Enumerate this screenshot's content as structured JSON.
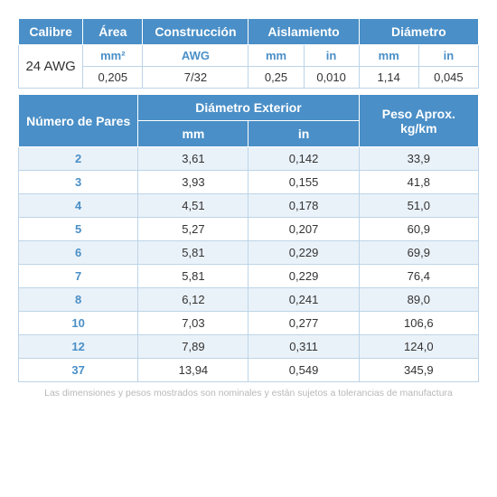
{
  "table1": {
    "headers": {
      "calibre": "Calibre",
      "area": "Área",
      "construccion": "Construcción",
      "aislamiento": "Aislamiento",
      "diametro": "Diámetro"
    },
    "subheaders": {
      "area_unit": "mm²",
      "construccion_unit": "AWG",
      "aisl_mm": "mm",
      "aisl_in": "in",
      "diam_mm": "mm",
      "diam_in": "in"
    },
    "row": {
      "calibre": "24 AWG",
      "area": "0,205",
      "construccion": "7/32",
      "aisl_mm": "0,25",
      "aisl_in": "0,010",
      "diam_mm": "1,14",
      "diam_in": "0,045"
    }
  },
  "table2": {
    "headers": {
      "pares": "Número de Pares",
      "diam_ext": "Diámetro Exterior",
      "peso": "Peso Aprox. kg/km",
      "mm": "mm",
      "in": "in"
    },
    "rows": [
      {
        "pares": "2",
        "mm": "3,61",
        "in": "0,142",
        "peso": "33,9"
      },
      {
        "pares": "3",
        "mm": "3,93",
        "in": "0,155",
        "peso": "41,8"
      },
      {
        "pares": "4",
        "mm": "4,51",
        "in": "0,178",
        "peso": "51,0"
      },
      {
        "pares": "5",
        "mm": "5,27",
        "in": "0,207",
        "peso": "60,9"
      },
      {
        "pares": "6",
        "mm": "5,81",
        "in": "0,229",
        "peso": "69,9"
      },
      {
        "pares": "7",
        "mm": "5,81",
        "in": "0,229",
        "peso": "76,4"
      },
      {
        "pares": "8",
        "mm": "6,12",
        "in": "0,241",
        "peso": "89,0"
      },
      {
        "pares": "10",
        "mm": "7,03",
        "in": "0,277",
        "peso": "106,6"
      },
      {
        "pares": "12",
        "mm": "7,89",
        "in": "0,311",
        "peso": "124,0"
      },
      {
        "pares": "37",
        "mm": "13,94",
        "in": "0,549",
        "peso": "345,9"
      }
    ]
  },
  "footnote": "Las dimensiones y pesos mostrados son nominales y están sujetos a tolerancias de manufactura",
  "colors": {
    "header_bg": "#4a8fc7",
    "border": "#bcd4e8",
    "alt_row": "#eaf2f9",
    "text_blue": "#4a8fc7",
    "text_dark": "#333333",
    "footnote": "#b8b8b8"
  }
}
